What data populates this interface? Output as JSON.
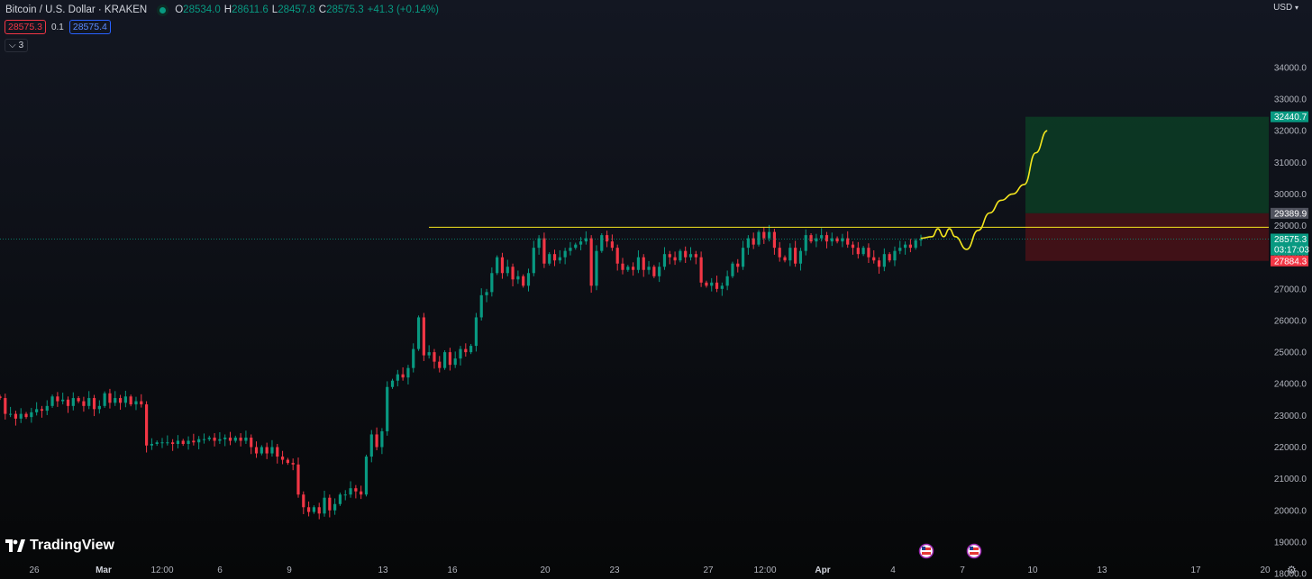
{
  "header": {
    "symbol": "Bitcoin / U.S. Dollar · KRAKEN",
    "o_label": "O",
    "o_value": "28534.0",
    "h_label": "H",
    "h_value": "28611.6",
    "l_label": "L",
    "l_value": "28457.8",
    "c_label": "C",
    "c_value": "28575.3",
    "change": "+41.3 (+0.14%)",
    "bid": "28575.3",
    "spread": "0.1",
    "ask": "28575.4",
    "indicators_count": "3",
    "currency": "USD"
  },
  "brand": {
    "name": "TradingView"
  },
  "colors": {
    "up": "#089981",
    "down": "#f23645",
    "resistance": "#f5e71e",
    "projection": "#f5e71e",
    "profit_zone": "#0c3d24",
    "loss_zone": "#4a1218"
  },
  "chart_data": {
    "type": "candlestick",
    "title": "Bitcoin / U.S. Dollar · KRAKEN",
    "y_axis_labels": [
      "34000.0",
      "33000.0",
      "32000.0",
      "31000.0",
      "30000.0",
      "29000.0",
      "28000.0",
      "27000.0",
      "26000.0",
      "25000.0",
      "24000.0",
      "23000.0",
      "22000.0",
      "21000.0",
      "20000.0",
      "19000.0",
      "18000.0"
    ],
    "ylim": [
      17700,
      35000
    ],
    "x_axis_labels": [
      "26",
      "Mar",
      "12:00",
      "6",
      "9",
      "13",
      "16",
      "20",
      "23",
      "27",
      "12:00",
      "Apr",
      "4",
      "7",
      "10",
      "13",
      "17",
      "20"
    ],
    "price_markers": {
      "take_profit": "32440.7",
      "entry": "29389.9",
      "last_price": "28575.3",
      "countdown": "03:17:03",
      "stop_loss": "27884.3"
    },
    "resistance_level": 28950,
    "position": {
      "type": "long",
      "entry": 29389.9,
      "take_profit": 32440.7,
      "stop_loss": 27884.3
    },
    "projection_path": [
      {
        "date": "2023-04-05T12:00",
        "price": 28600
      },
      {
        "date": "2023-04-06T00:00",
        "price": 28650
      },
      {
        "date": "2023-04-06T06:00",
        "price": 28900
      },
      {
        "date": "2023-04-06T12:00",
        "price": 28650
      },
      {
        "date": "2023-04-06T18:00",
        "price": 28900
      },
      {
        "date": "2023-04-07T00:00",
        "price": 28650
      },
      {
        "date": "2023-04-07T12:00",
        "price": 28250
      },
      {
        "date": "2023-04-08T00:00",
        "price": 28850
      },
      {
        "date": "2023-04-08T12:00",
        "price": 29400
      },
      {
        "date": "2023-04-09T00:00",
        "price": 29800
      },
      {
        "date": "2023-04-09T12:00",
        "price": 30000
      },
      {
        "date": "2023-04-10T00:00",
        "price": 30300
      },
      {
        "date": "2023-04-10T12:00",
        "price": 31300
      },
      {
        "date": "2023-04-11T00:00",
        "price": 32000
      }
    ],
    "candles": [
      [
        23600,
        23550
      ],
      [
        23550,
        23050
      ],
      [
        23050,
        23050
      ],
      [
        23050,
        22900
      ],
      [
        22900,
        23050
      ],
      [
        23050,
        22950
      ],
      [
        22950,
        23100
      ],
      [
        23100,
        23200
      ],
      [
        23200,
        23150
      ],
      [
        23150,
        23300
      ],
      [
        23300,
        23600
      ],
      [
        23600,
        23450
      ],
      [
        23450,
        23500
      ],
      [
        23500,
        23300
      ],
      [
        23300,
        23550
      ],
      [
        23550,
        23450
      ],
      [
        23450,
        23300
      ],
      [
        23300,
        23550
      ],
      [
        23550,
        23200
      ],
      [
        23200,
        23300
      ],
      [
        23300,
        23700
      ],
      [
        23700,
        23400
      ],
      [
        23400,
        23550
      ],
      [
        23550,
        23400
      ],
      [
        23400,
        23600
      ],
      [
        23600,
        23350
      ],
      [
        23350,
        23450
      ],
      [
        23450,
        23350
      ],
      [
        23350,
        22050
      ],
      [
        22050,
        22100
      ],
      [
        22100,
        22150
      ],
      [
        22150,
        22150
      ],
      [
        22150,
        22150
      ],
      [
        22150,
        22100
      ],
      [
        22100,
        22200
      ],
      [
        22200,
        22100
      ],
      [
        22100,
        22200
      ],
      [
        22200,
        22150
      ],
      [
        22150,
        22250
      ],
      [
        22250,
        22250
      ],
      [
        22250,
        22300
      ],
      [
        22300,
        22200
      ],
      [
        22200,
        22250
      ],
      [
        22250,
        22300
      ],
      [
        22300,
        22200
      ],
      [
        22200,
        22300
      ],
      [
        22300,
        22200
      ],
      [
        22200,
        22300
      ],
      [
        22300,
        22000
      ],
      [
        22000,
        21800
      ],
      [
        21800,
        22000
      ],
      [
        22000,
        21800
      ],
      [
        21800,
        22000
      ],
      [
        22000,
        21700
      ],
      [
        21700,
        21600
      ],
      [
        21600,
        21500
      ],
      [
        21500,
        21450
      ],
      [
        21450,
        20500
      ],
      [
        20500,
        20100
      ],
      [
        20100,
        19950
      ],
      [
        19950,
        20100
      ],
      [
        20100,
        19900
      ],
      [
        19900,
        20400
      ],
      [
        20400,
        20000
      ],
      [
        20000,
        20200
      ],
      [
        20200,
        20500
      ],
      [
        20500,
        20500
      ],
      [
        20500,
        20700
      ],
      [
        20700,
        20600
      ],
      [
        20600,
        20500
      ],
      [
        20500,
        21700
      ],
      [
        21700,
        22400
      ],
      [
        22400,
        22000
      ],
      [
        22000,
        22500
      ],
      [
        22500,
        23900
      ],
      [
        23900,
        24100
      ],
      [
        24100,
        24300
      ],
      [
        24300,
        24200
      ],
      [
        24200,
        24500
      ],
      [
        24500,
        25100
      ],
      [
        25100,
        26100
      ],
      [
        26100,
        24900
      ],
      [
        24900,
        25000
      ],
      [
        25000,
        24700
      ],
      [
        24700,
        24500
      ],
      [
        24500,
        25000
      ],
      [
        25000,
        24600
      ],
      [
        24600,
        24800
      ],
      [
        24800,
        25100
      ],
      [
        25100,
        25000
      ],
      [
        25000,
        25200
      ],
      [
        25200,
        26100
      ],
      [
        26100,
        26800
      ],
      [
        26800,
        26900
      ],
      [
        26900,
        27500
      ],
      [
        27500,
        28000
      ],
      [
        28000,
        27500
      ],
      [
        27500,
        27700
      ],
      [
        27700,
        27300
      ],
      [
        27300,
        27400
      ],
      [
        27400,
        27100
      ],
      [
        27100,
        27500
      ],
      [
        27500,
        28300
      ],
      [
        28300,
        28600
      ],
      [
        28600,
        27800
      ],
      [
        27800,
        28100
      ],
      [
        28100,
        27900
      ],
      [
        27900,
        28000
      ],
      [
        28000,
        28200
      ],
      [
        28200,
        28300
      ],
      [
        28300,
        28400
      ],
      [
        28400,
        28500
      ],
      [
        28500,
        28600
      ],
      [
        28600,
        27100
      ],
      [
        27100,
        28200
      ],
      [
        28200,
        28700
      ],
      [
        28700,
        28500
      ],
      [
        28500,
        28300
      ],
      [
        28300,
        27800
      ],
      [
        27800,
        27600
      ],
      [
        27600,
        27700
      ],
      [
        27700,
        27600
      ],
      [
        27600,
        28000
      ],
      [
        28000,
        27600
      ],
      [
        27600,
        27700
      ],
      [
        27700,
        27400
      ],
      [
        27400,
        27700
      ],
      [
        27700,
        28100
      ],
      [
        28100,
        28000
      ],
      [
        28000,
        27900
      ],
      [
        27900,
        28200
      ],
      [
        28200,
        28000
      ],
      [
        28000,
        28100
      ],
      [
        28100,
        28000
      ],
      [
        28000,
        27200
      ],
      [
        27200,
        27100
      ],
      [
        27100,
        27200
      ],
      [
        27200,
        27000
      ],
      [
        27000,
        27100
      ],
      [
        27100,
        27400
      ],
      [
        27400,
        27800
      ],
      [
        27800,
        27700
      ],
      [
        27700,
        28300
      ],
      [
        28300,
        28600
      ],
      [
        28600,
        28400
      ],
      [
        28400,
        28800
      ],
      [
        28800,
        28600
      ],
      [
        28600,
        28800
      ],
      [
        28800,
        28300
      ],
      [
        28300,
        28000
      ],
      [
        28000,
        27900
      ],
      [
        27900,
        28300
      ],
      [
        28300,
        27800
      ],
      [
        27800,
        28200
      ],
      [
        28200,
        28700
      ],
      [
        28700,
        28500
      ],
      [
        28500,
        28600
      ],
      [
        28600,
        28700
      ],
      [
        28700,
        28500
      ],
      [
        28500,
        28600
      ],
      [
        28600,
        28500
      ],
      [
        28500,
        28600
      ],
      [
        28600,
        28400
      ],
      [
        28400,
        28300
      ],
      [
        28300,
        28100
      ],
      [
        28100,
        28300
      ],
      [
        28300,
        28000
      ],
      [
        28000,
        27900
      ],
      [
        27900,
        27700
      ],
      [
        27700,
        28100
      ],
      [
        28100,
        27900
      ],
      [
        27900,
        28200
      ],
      [
        28200,
        28300
      ],
      [
        28300,
        28400
      ],
      [
        28400,
        28300
      ],
      [
        28300,
        28534
      ],
      [
        28534,
        28575.3
      ]
    ]
  }
}
